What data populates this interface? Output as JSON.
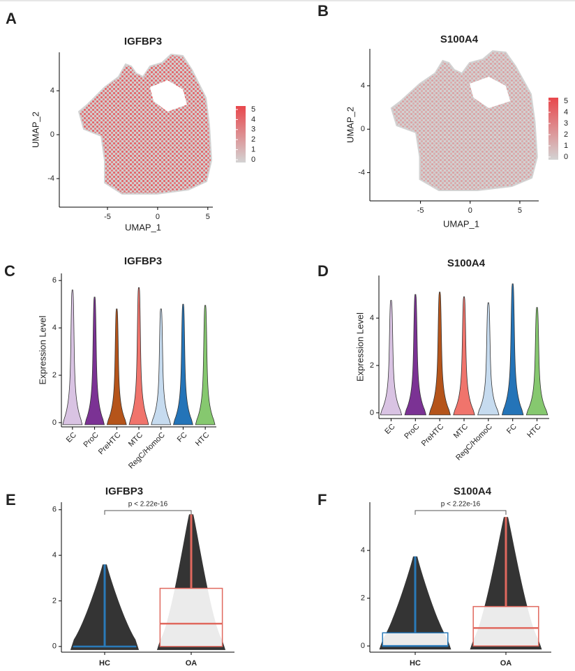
{
  "chart_data": [
    {
      "type": "umap",
      "label": "A",
      "title": "IGFBP3",
      "xlabel": "UMAP_1",
      "ylabel": "UMAP_2",
      "xlim": [
        -9.8,
        5.5
      ],
      "ylim": [
        -6.6,
        7.5
      ],
      "xticks": [
        -5,
        0,
        5
      ],
      "yticks": [
        -4,
        0,
        4
      ],
      "colorbar": {
        "ticks": [
          0,
          1,
          2,
          3,
          4,
          5
        ],
        "colors": [
          "#d3d3d3",
          "#e8474c"
        ]
      }
    },
    {
      "type": "umap",
      "label": "B",
      "title": "S100A4",
      "xlabel": "UMAP_1",
      "ylabel": "UMAP_2",
      "xlim": [
        -10.1,
        6.9
      ],
      "ylim": [
        -6.6,
        7.4
      ],
      "xticks": [
        -5,
        0,
        5
      ],
      "yticks": [
        -4,
        0,
        4
      ],
      "colorbar": {
        "ticks": [
          0,
          1,
          2,
          3,
          4,
          5
        ],
        "colors": [
          "#d3d3d3",
          "#e8474c"
        ]
      }
    },
    {
      "type": "violin",
      "label": "C",
      "title": "IGFBP3",
      "ylabel": "Expression Level",
      "categories": [
        "EC",
        "ProC",
        "PreHTC",
        "MTC",
        "RegC/HomoC",
        "FC",
        "HTC"
      ],
      "colors": [
        "#d9c3e3",
        "#7b3294",
        "#b5541a",
        "#f0746c",
        "#c6dbef",
        "#2474b8",
        "#86c86f"
      ],
      "values": [
        5.6,
        5.3,
        4.8,
        5.7,
        4.8,
        5.0,
        4.95
      ],
      "ylim": [
        -0.18,
        6.3
      ],
      "yticks": [
        0,
        2,
        4,
        6
      ]
    },
    {
      "type": "violin",
      "label": "D",
      "title": "S100A4",
      "ylabel": "Expression Level",
      "categories": [
        "EC",
        "ProC",
        "PreHTC",
        "MTC",
        "RegC/HomoC",
        "FC",
        "HTC"
      ],
      "colors": [
        "#d9c3e3",
        "#7b3294",
        "#b5541a",
        "#f0746c",
        "#c6dbef",
        "#2474b8",
        "#86c86f"
      ],
      "values": [
        4.75,
        5.0,
        5.1,
        4.9,
        4.65,
        5.45,
        4.45
      ],
      "ylim": [
        -0.24,
        5.8
      ],
      "yticks": [
        0,
        2,
        4
      ]
    },
    {
      "type": "box",
      "label": "E",
      "title": "IGFBP3",
      "annotation": "p < 2.22e-16",
      "categories": [
        "HC",
        "OA"
      ],
      "colors": [
        "#2a7ab9",
        "#e0685e"
      ],
      "q1": [
        0,
        0
      ],
      "median": [
        0,
        1.0
      ],
      "q3": [
        0,
        2.55
      ],
      "max": [
        3.6,
        5.8
      ],
      "ylim": [
        -0.25,
        6.33
      ],
      "yticks": [
        0,
        2,
        4,
        6
      ]
    },
    {
      "type": "box",
      "label": "F",
      "title": "S100A4",
      "annotation": "p < 2.22e-16",
      "categories": [
        "HC",
        "OA"
      ],
      "colors": [
        "#2a7ab9",
        "#e0685e"
      ],
      "q1": [
        0,
        0
      ],
      "median": [
        0,
        0.75
      ],
      "q3": [
        0.55,
        1.65
      ],
      "max": [
        3.75,
        5.4
      ],
      "ylim": [
        -0.26,
        6.02
      ],
      "yticks": [
        0,
        2,
        4
      ]
    }
  ]
}
